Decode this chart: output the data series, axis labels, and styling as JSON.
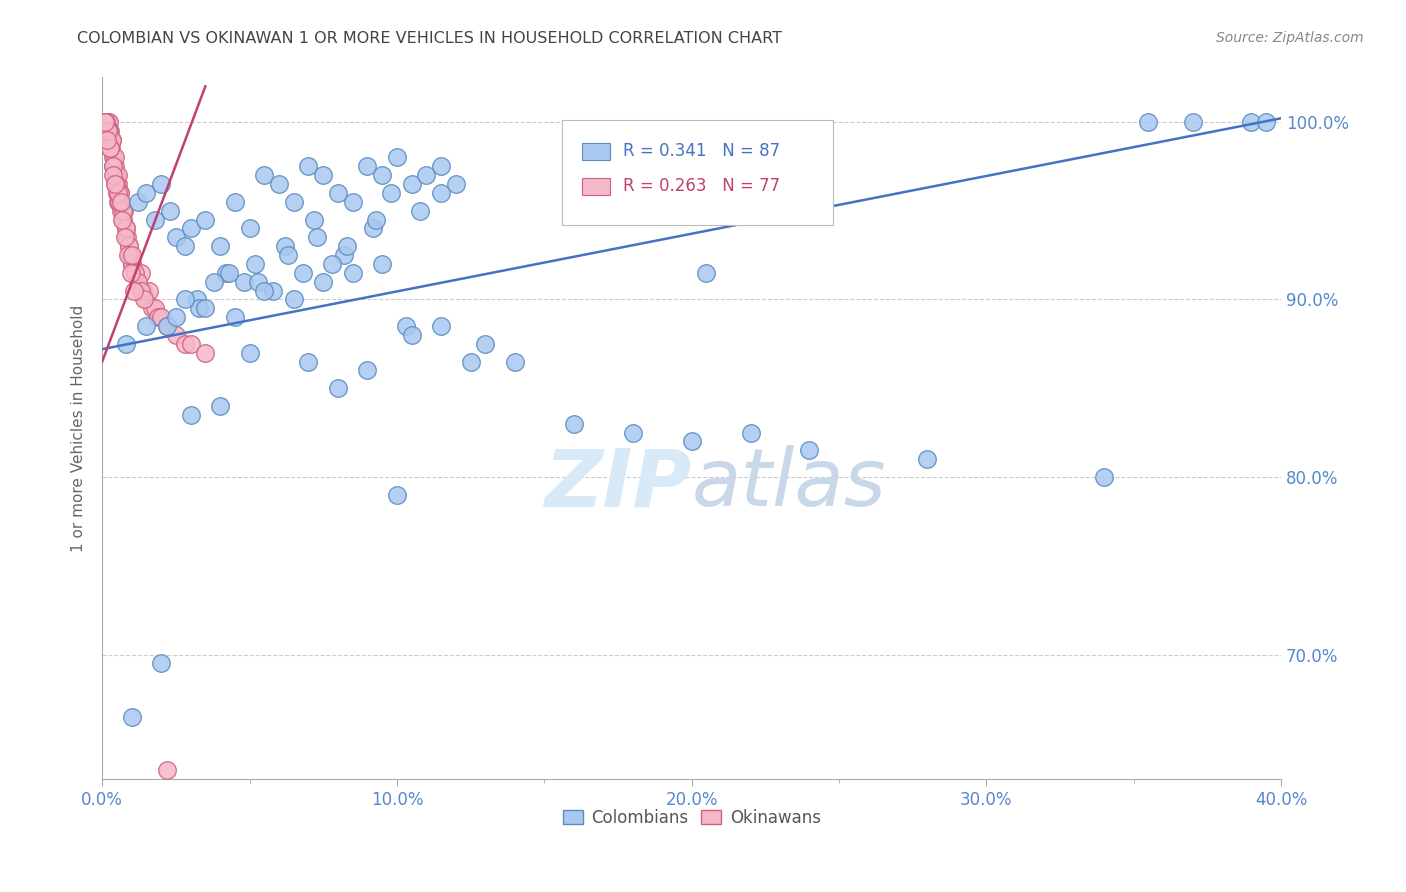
{
  "title": "COLOMBIAN VS OKINAWAN 1 OR MORE VEHICLES IN HOUSEHOLD CORRELATION CHART",
  "source": "Source: ZipAtlas.com",
  "ylabel": "1 or more Vehicles in Household",
  "legend_colombians": "Colombians",
  "legend_okinawans": "Okinawans",
  "r_colombian": 0.341,
  "n_colombian": 87,
  "r_okinawan": 0.263,
  "n_okinawan": 77,
  "xlim": [
    0.0,
    40.0
  ],
  "ylim": [
    63.0,
    102.5
  ],
  "yticks": [
    70.0,
    80.0,
    90.0,
    100.0
  ],
  "xticks": [
    0.0,
    10.0,
    20.0,
    30.0,
    40.0
  ],
  "xtick_minor": [
    5.0,
    15.0,
    25.0,
    35.0
  ],
  "color_colombian_fill": "#A8C8F0",
  "color_colombian_edge": "#5A8DC0",
  "color_okinawan_fill": "#F5B8C8",
  "color_okinawan_edge": "#D06080",
  "color_line_colombian": "#4472C4",
  "color_line_okinawan": "#C04070",
  "color_axis_labels": "#5588CC",
  "color_title": "#444444",
  "background_color": "#FFFFFF",
  "grid_color": "#CCCCCC",
  "watermark_color": "#D8EAF8",
  "col_line_x": [
    0.0,
    40.0
  ],
  "col_line_y": [
    87.2,
    100.2
  ],
  "oki_line_x": [
    0.0,
    3.5
  ],
  "oki_line_y": [
    86.5,
    102.0
  ],
  "colombian_x": [
    1.2,
    1.5,
    1.8,
    2.0,
    2.3,
    2.5,
    2.8,
    3.0,
    3.5,
    4.0,
    4.5,
    5.0,
    5.5,
    6.0,
    6.5,
    7.0,
    7.5,
    8.0,
    8.5,
    9.0,
    9.5,
    10.0,
    10.5,
    11.0,
    11.5,
    12.0,
    12.5,
    13.0,
    5.2,
    6.2,
    7.2,
    8.2,
    9.2,
    4.8,
    5.8,
    6.8,
    7.8,
    3.2,
    4.2,
    5.3,
    6.3,
    7.3,
    8.3,
    9.3,
    10.3,
    2.2,
    3.3,
    4.3,
    2.8,
    3.8,
    11.5,
    10.8,
    9.8,
    14.0,
    16.0,
    18.0,
    20.0,
    22.0,
    24.0,
    28.0,
    35.5,
    37.0,
    39.0,
    39.5,
    1.0,
    2.0,
    34.0,
    20.5,
    0.8,
    1.5,
    2.5,
    3.5,
    4.5,
    5.5,
    6.5,
    7.5,
    8.5,
    9.5,
    10.5,
    11.5,
    4.0,
    3.0,
    7.0,
    5.0,
    8.0,
    9.0,
    10.0
  ],
  "colombian_y": [
    95.5,
    96.0,
    94.5,
    96.5,
    95.0,
    93.5,
    93.0,
    94.0,
    94.5,
    93.0,
    95.5,
    94.0,
    97.0,
    96.5,
    95.5,
    97.5,
    97.0,
    96.0,
    95.5,
    97.5,
    97.0,
    98.0,
    96.5,
    97.0,
    96.0,
    96.5,
    86.5,
    87.5,
    92.0,
    93.0,
    94.5,
    92.5,
    94.0,
    91.0,
    90.5,
    91.5,
    92.0,
    90.0,
    91.5,
    91.0,
    92.5,
    93.5,
    93.0,
    94.5,
    88.5,
    88.5,
    89.5,
    91.5,
    90.0,
    91.0,
    97.5,
    95.0,
    96.0,
    86.5,
    83.0,
    82.5,
    82.0,
    82.5,
    81.5,
    81.0,
    100.0,
    100.0,
    100.0,
    100.0,
    66.5,
    69.5,
    80.0,
    91.5,
    87.5,
    88.5,
    89.0,
    89.5,
    89.0,
    90.5,
    90.0,
    91.0,
    91.5,
    92.0,
    88.0,
    88.5,
    84.0,
    83.5,
    86.5,
    87.0,
    85.0,
    86.0,
    79.0
  ],
  "okinawan_x": [
    0.1,
    0.15,
    0.18,
    0.2,
    0.22,
    0.25,
    0.28,
    0.3,
    0.32,
    0.35,
    0.38,
    0.4,
    0.42,
    0.45,
    0.48,
    0.5,
    0.52,
    0.55,
    0.58,
    0.6,
    0.62,
    0.65,
    0.7,
    0.75,
    0.8,
    0.85,
    0.9,
    0.95,
    1.0,
    1.1,
    1.2,
    1.3,
    1.4,
    1.5,
    1.6,
    1.7,
    1.8,
    1.9,
    2.0,
    2.2,
    2.5,
    2.8,
    3.0,
    3.5,
    0.12,
    0.22,
    0.32,
    0.42,
    0.52,
    0.62,
    0.72,
    0.82,
    0.92,
    1.02,
    1.12,
    1.22,
    1.32,
    1.42,
    0.18,
    0.28,
    0.38,
    0.48,
    0.58,
    0.68,
    0.78,
    0.88,
    0.98,
    1.08,
    0.08,
    0.55,
    1.0,
    0.35,
    0.65,
    0.45,
    0.25,
    0.15,
    2.2
  ],
  "okinawan_y": [
    100.0,
    99.5,
    100.0,
    99.5,
    100.0,
    99.0,
    99.5,
    98.5,
    99.0,
    97.5,
    98.0,
    97.0,
    97.5,
    96.5,
    97.0,
    96.0,
    96.5,
    95.5,
    96.0,
    95.5,
    96.0,
    95.0,
    94.5,
    95.0,
    94.0,
    93.5,
    93.0,
    92.5,
    92.0,
    91.5,
    91.0,
    91.5,
    90.5,
    90.0,
    90.5,
    89.5,
    89.5,
    89.0,
    89.0,
    88.5,
    88.0,
    87.5,
    87.5,
    87.0,
    100.0,
    99.5,
    99.0,
    98.0,
    97.0,
    96.0,
    95.0,
    94.0,
    93.0,
    92.0,
    91.5,
    91.0,
    90.5,
    90.0,
    99.5,
    98.5,
    97.5,
    96.5,
    95.5,
    94.5,
    93.5,
    92.5,
    91.5,
    90.5,
    100.0,
    96.0,
    92.5,
    97.0,
    95.5,
    96.5,
    98.5,
    99.0,
    63.5
  ]
}
